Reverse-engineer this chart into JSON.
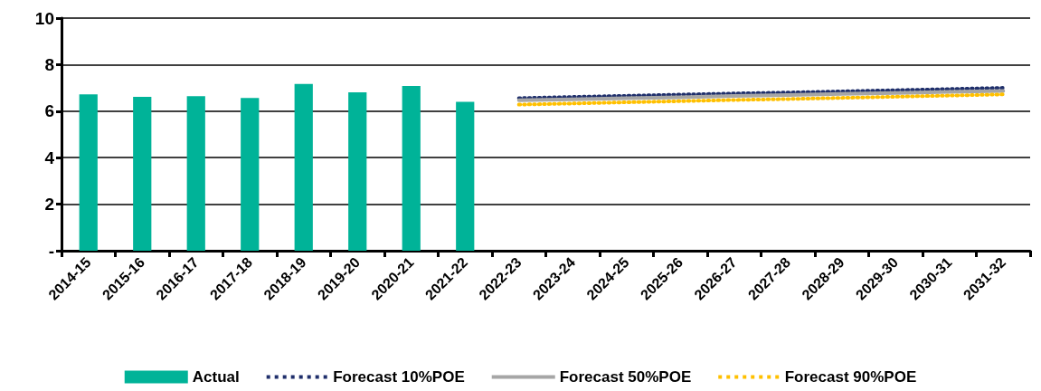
{
  "chart_data": {
    "type": "bar",
    "categories": [
      "2014-15",
      "2015-16",
      "2016-17",
      "2017-18",
      "2018-19",
      "2019-20",
      "2020-21",
      "2021-22",
      "2022-23",
      "2023-24",
      "2024-25",
      "2025-26",
      "2026-27",
      "2027-28",
      "2028-29",
      "2029-30",
      "2030-31",
      "2031-32"
    ],
    "series": [
      {
        "name": "Actual",
        "color": "#00b398",
        "values": [
          6.72,
          6.61,
          6.64,
          6.57,
          7.17,
          6.81,
          7.08,
          6.4,
          null,
          null,
          null,
          null,
          null,
          null,
          null,
          null,
          null,
          null
        ]
      },
      {
        "name": "Forecast 10%POE",
        "type": "line",
        "line_style": "dotted",
        "color": "#1f2f6b",
        "values": [
          null,
          null,
          null,
          null,
          null,
          null,
          null,
          null,
          6.56,
          6.61,
          6.66,
          6.71,
          6.76,
          6.8,
          6.85,
          6.9,
          6.95,
          7.0
        ]
      },
      {
        "name": "Forecast 50%POE",
        "type": "line",
        "line_style": "solid",
        "color": "#a6a6a6",
        "values": [
          null,
          null,
          null,
          null,
          null,
          null,
          null,
          null,
          6.47,
          6.51,
          6.56,
          6.6,
          6.65,
          6.69,
          6.74,
          6.78,
          6.83,
          6.87
        ]
      },
      {
        "name": "Forecast 90%POE",
        "type": "line",
        "line_style": "dotted",
        "color": "#ffc000",
        "values": [
          null,
          null,
          null,
          null,
          null,
          null,
          null,
          null,
          6.28,
          6.33,
          6.38,
          6.43,
          6.48,
          6.52,
          6.57,
          6.62,
          6.67,
          6.72
        ]
      }
    ],
    "ylim": [
      0,
      10
    ],
    "yticks": [
      {
        "value": 0,
        "label": "-"
      },
      2,
      4,
      6,
      8,
      10
    ],
    "grid": "y",
    "legend": "bottom",
    "marker": "none"
  }
}
